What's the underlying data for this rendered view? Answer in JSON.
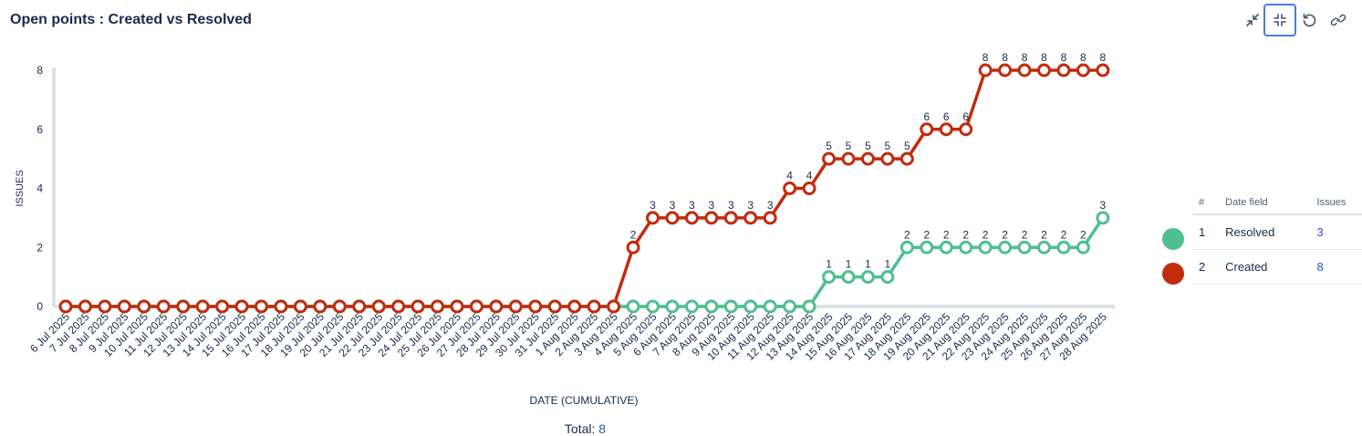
{
  "title": "Open points : Created vs Resolved",
  "toolbar": {
    "buttons": [
      {
        "name": "collapse-icon"
      },
      {
        "name": "exit-fullscreen-icon"
      },
      {
        "name": "refresh-icon"
      },
      {
        "name": "link-icon"
      }
    ]
  },
  "legend": {
    "headers": [
      "#",
      "Date field",
      "Issues"
    ],
    "rows": [
      {
        "index": "1",
        "label": "Resolved",
        "issues": "3",
        "color": "#4fbf8f"
      },
      {
        "index": "2",
        "label": "Created",
        "issues": "8",
        "color": "#c22b0c"
      }
    ]
  },
  "total": {
    "label": "Total:",
    "value": "8"
  },
  "chart_data": {
    "type": "line",
    "xlabel": "DATE (CUMULATIVE)",
    "ylabel": "ISSUES",
    "ylim": [
      0,
      8
    ],
    "yticks": [
      0,
      2,
      4,
      6,
      8
    ],
    "grid": false,
    "categories": [
      "6 Jul 2025",
      "7 Jul 2025",
      "8 Jul 2025",
      "9 Jul 2025",
      "10 Jul 2025",
      "11 Jul 2025",
      "12 Jul 2025",
      "13 Jul 2025",
      "14 Jul 2025",
      "15 Jul 2025",
      "16 Jul 2025",
      "17 Jul 2025",
      "18 Jul 2025",
      "19 Jul 2025",
      "20 Jul 2025",
      "21 Jul 2025",
      "22 Jul 2025",
      "23 Jul 2025",
      "24 Jul 2025",
      "25 Jul 2025",
      "26 Jul 2025",
      "27 Jul 2025",
      "28 Jul 2025",
      "29 Jul 2025",
      "30 Jul 2025",
      "31 Jul 2025",
      "1 Aug 2025",
      "2 Aug 2025",
      "3 Aug 2025",
      "4 Aug 2025",
      "5 Aug 2025",
      "6 Aug 2025",
      "7 Aug 2025",
      "8 Aug 2025",
      "9 Aug 2025",
      "10 Aug 2025",
      "11 Aug 2025",
      "12 Aug 2025",
      "13 Aug 2025",
      "14 Aug 2025",
      "15 Aug 2025",
      "16 Aug 2025",
      "17 Aug 2025",
      "18 Aug 2025",
      "19 Aug 2025",
      "20 Aug 2025",
      "21 Aug 2025",
      "22 Aug 2025",
      "23 Aug 2025",
      "24 Aug 2025",
      "25 Aug 2025",
      "26 Aug 2025",
      "27 Aug 2025",
      "28 Aug 2025"
    ],
    "series": [
      {
        "name": "Resolved",
        "color": "#4fbf8f",
        "values": [
          0,
          0,
          0,
          0,
          0,
          0,
          0,
          0,
          0,
          0,
          0,
          0,
          0,
          0,
          0,
          0,
          0,
          0,
          0,
          0,
          0,
          0,
          0,
          0,
          0,
          0,
          0,
          0,
          0,
          0,
          0,
          0,
          0,
          0,
          0,
          0,
          0,
          0,
          0,
          1,
          1,
          1,
          1,
          2,
          2,
          2,
          2,
          2,
          2,
          2,
          2,
          2,
          2,
          3
        ]
      },
      {
        "name": "Created",
        "color": "#c22b0c",
        "values": [
          0,
          0,
          0,
          0,
          0,
          0,
          0,
          0,
          0,
          0,
          0,
          0,
          0,
          0,
          0,
          0,
          0,
          0,
          0,
          0,
          0,
          0,
          0,
          0,
          0,
          0,
          0,
          0,
          0,
          2,
          3,
          3,
          3,
          3,
          3,
          3,
          3,
          4,
          4,
          5,
          5,
          5,
          5,
          5,
          6,
          6,
          6,
          8,
          8,
          8,
          8,
          8,
          8,
          8
        ]
      }
    ]
  }
}
